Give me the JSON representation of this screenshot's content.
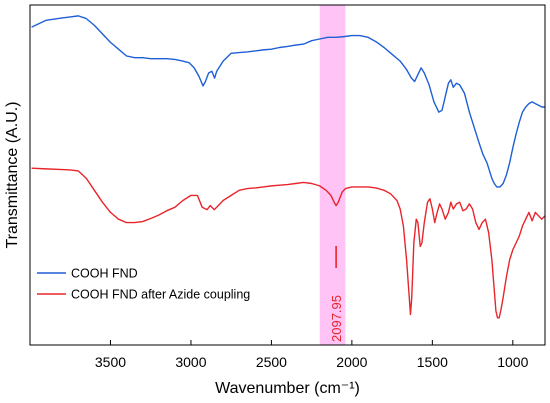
{
  "chart_data": {
    "type": "line",
    "title": "",
    "xlabel": "Wavenumber (cm⁻¹)",
    "ylabel": "Transmittance (A.U.)",
    "xlim": [
      4000,
      800
    ],
    "x_reversed": true,
    "y_ticks_shown": false,
    "grid": false,
    "legend_position": "lower-left",
    "x_ticks": [
      "3500",
      "3000",
      "2500",
      "2000",
      "1500",
      "1000"
    ],
    "x_tick_values": [
      3500,
      3000,
      2500,
      2000,
      1500,
      1000
    ],
    "highlight_band": {
      "from": 2200,
      "to": 2040,
      "color": "#ff7be8"
    },
    "annotation": {
      "label": "2097.95",
      "x": 2097.95,
      "color": "#e8252b"
    },
    "series": [
      {
        "name": "COOH FND",
        "color": "#1f5fd6",
        "points": [
          [
            3990,
            0.935
          ],
          [
            3900,
            0.955
          ],
          [
            3800,
            0.962
          ],
          [
            3750,
            0.965
          ],
          [
            3700,
            0.968
          ],
          [
            3650,
            0.96
          ],
          [
            3600,
            0.94
          ],
          [
            3550,
            0.915
          ],
          [
            3500,
            0.89
          ],
          [
            3450,
            0.87
          ],
          [
            3400,
            0.85
          ],
          [
            3350,
            0.845
          ],
          [
            3300,
            0.845
          ],
          [
            3250,
            0.842
          ],
          [
            3200,
            0.842
          ],
          [
            3150,
            0.842
          ],
          [
            3100,
            0.84
          ],
          [
            3050,
            0.835
          ],
          [
            3010,
            0.83
          ],
          [
            2980,
            0.815
          ],
          [
            2950,
            0.79
          ],
          [
            2925,
            0.762
          ],
          [
            2910,
            0.775
          ],
          [
            2890,
            0.8
          ],
          [
            2870,
            0.805
          ],
          [
            2853,
            0.785
          ],
          [
            2840,
            0.805
          ],
          [
            2800,
            0.835
          ],
          [
            2750,
            0.858
          ],
          [
            2700,
            0.86
          ],
          [
            2650,
            0.862
          ],
          [
            2600,
            0.865
          ],
          [
            2550,
            0.868
          ],
          [
            2500,
            0.87
          ],
          [
            2450,
            0.875
          ],
          [
            2400,
            0.878
          ],
          [
            2350,
            0.882
          ],
          [
            2300,
            0.885
          ],
          [
            2250,
            0.895
          ],
          [
            2200,
            0.9
          ],
          [
            2150,
            0.905
          ],
          [
            2100,
            0.905
          ],
          [
            2050,
            0.907
          ],
          [
            2000,
            0.91
          ],
          [
            1950,
            0.91
          ],
          [
            1900,
            0.905
          ],
          [
            1850,
            0.892
          ],
          [
            1800,
            0.875
          ],
          [
            1750,
            0.855
          ],
          [
            1700,
            0.835
          ],
          [
            1660,
            0.81
          ],
          [
            1630,
            0.785
          ],
          [
            1610,
            0.775
          ],
          [
            1590,
            0.795
          ],
          [
            1570,
            0.815
          ],
          [
            1550,
            0.8
          ],
          [
            1520,
            0.765
          ],
          [
            1490,
            0.715
          ],
          [
            1460,
            0.685
          ],
          [
            1440,
            0.69
          ],
          [
            1420,
            0.73
          ],
          [
            1400,
            0.77
          ],
          [
            1385,
            0.78
          ],
          [
            1370,
            0.758
          ],
          [
            1350,
            0.77
          ],
          [
            1330,
            0.765
          ],
          [
            1300,
            0.74
          ],
          [
            1270,
            0.685
          ],
          [
            1240,
            0.64
          ],
          [
            1210,
            0.595
          ],
          [
            1185,
            0.56
          ],
          [
            1160,
            0.535
          ],
          [
            1130,
            0.49
          ],
          [
            1115,
            0.475
          ],
          [
            1100,
            0.465
          ],
          [
            1080,
            0.465
          ],
          [
            1060,
            0.475
          ],
          [
            1040,
            0.5
          ],
          [
            1020,
            0.535
          ],
          [
            1000,
            0.58
          ],
          [
            980,
            0.62
          ],
          [
            960,
            0.655
          ],
          [
            940,
            0.685
          ],
          [
            920,
            0.7
          ],
          [
            900,
            0.71
          ],
          [
            880,
            0.715
          ],
          [
            860,
            0.71
          ],
          [
            840,
            0.705
          ],
          [
            820,
            0.7
          ],
          [
            800,
            0.7
          ]
        ]
      },
      {
        "name": "COOH FND after Azide coupling",
        "color": "#e8252b",
        "points": [
          [
            3990,
            0.52
          ],
          [
            3900,
            0.518
          ],
          [
            3800,
            0.516
          ],
          [
            3750,
            0.515
          ],
          [
            3700,
            0.512
          ],
          [
            3650,
            0.49
          ],
          [
            3600,
            0.455
          ],
          [
            3550,
            0.42
          ],
          [
            3500,
            0.39
          ],
          [
            3450,
            0.37
          ],
          [
            3400,
            0.36
          ],
          [
            3350,
            0.36
          ],
          [
            3300,
            0.363
          ],
          [
            3250,
            0.372
          ],
          [
            3200,
            0.382
          ],
          [
            3150,
            0.395
          ],
          [
            3100,
            0.405
          ],
          [
            3050,
            0.425
          ],
          [
            3000,
            0.44
          ],
          [
            2960,
            0.44
          ],
          [
            2930,
            0.405
          ],
          [
            2900,
            0.398
          ],
          [
            2880,
            0.41
          ],
          [
            2855,
            0.398
          ],
          [
            2830,
            0.41
          ],
          [
            2800,
            0.425
          ],
          [
            2750,
            0.44
          ],
          [
            2700,
            0.455
          ],
          [
            2650,
            0.46
          ],
          [
            2600,
            0.462
          ],
          [
            2550,
            0.465
          ],
          [
            2500,
            0.468
          ],
          [
            2450,
            0.47
          ],
          [
            2400,
            0.472
          ],
          [
            2350,
            0.475
          ],
          [
            2300,
            0.478
          ],
          [
            2250,
            0.475
          ],
          [
            2200,
            0.468
          ],
          [
            2160,
            0.455
          ],
          [
            2130,
            0.44
          ],
          [
            2110,
            0.42
          ],
          [
            2098,
            0.41
          ],
          [
            2085,
            0.42
          ],
          [
            2060,
            0.45
          ],
          [
            2040,
            0.46
          ],
          [
            2000,
            0.465
          ],
          [
            1950,
            0.465
          ],
          [
            1900,
            0.465
          ],
          [
            1850,
            0.462
          ],
          [
            1800,
            0.455
          ],
          [
            1760,
            0.445
          ],
          [
            1720,
            0.425
          ],
          [
            1700,
            0.4
          ],
          [
            1680,
            0.35
          ],
          [
            1660,
            0.25
          ],
          [
            1645,
            0.15
          ],
          [
            1636,
            0.09
          ],
          [
            1628,
            0.14
          ],
          [
            1615,
            0.3
          ],
          [
            1600,
            0.37
          ],
          [
            1590,
            0.36
          ],
          [
            1575,
            0.29
          ],
          [
            1565,
            0.3
          ],
          [
            1550,
            0.36
          ],
          [
            1530,
            0.42
          ],
          [
            1515,
            0.43
          ],
          [
            1500,
            0.4
          ],
          [
            1485,
            0.36
          ],
          [
            1470,
            0.39
          ],
          [
            1455,
            0.415
          ],
          [
            1440,
            0.4
          ],
          [
            1420,
            0.37
          ],
          [
            1400,
            0.39
          ],
          [
            1385,
            0.42
          ],
          [
            1370,
            0.4
          ],
          [
            1350,
            0.415
          ],
          [
            1330,
            0.42
          ],
          [
            1310,
            0.395
          ],
          [
            1290,
            0.4
          ],
          [
            1270,
            0.415
          ],
          [
            1250,
            0.4
          ],
          [
            1230,
            0.36
          ],
          [
            1210,
            0.34
          ],
          [
            1190,
            0.36
          ],
          [
            1170,
            0.37
          ],
          [
            1150,
            0.33
          ],
          [
            1130,
            0.25
          ],
          [
            1115,
            0.16
          ],
          [
            1105,
            0.1
          ],
          [
            1095,
            0.08
          ],
          [
            1085,
            0.08
          ],
          [
            1075,
            0.1
          ],
          [
            1060,
            0.14
          ],
          [
            1040,
            0.2
          ],
          [
            1020,
            0.25
          ],
          [
            1000,
            0.28
          ],
          [
            980,
            0.3
          ],
          [
            960,
            0.32
          ],
          [
            940,
            0.35
          ],
          [
            920,
            0.37
          ],
          [
            900,
            0.39
          ],
          [
            880,
            0.365
          ],
          [
            860,
            0.39
          ],
          [
            840,
            0.38
          ],
          [
            820,
            0.37
          ],
          [
            800,
            0.38
          ]
        ]
      }
    ]
  }
}
